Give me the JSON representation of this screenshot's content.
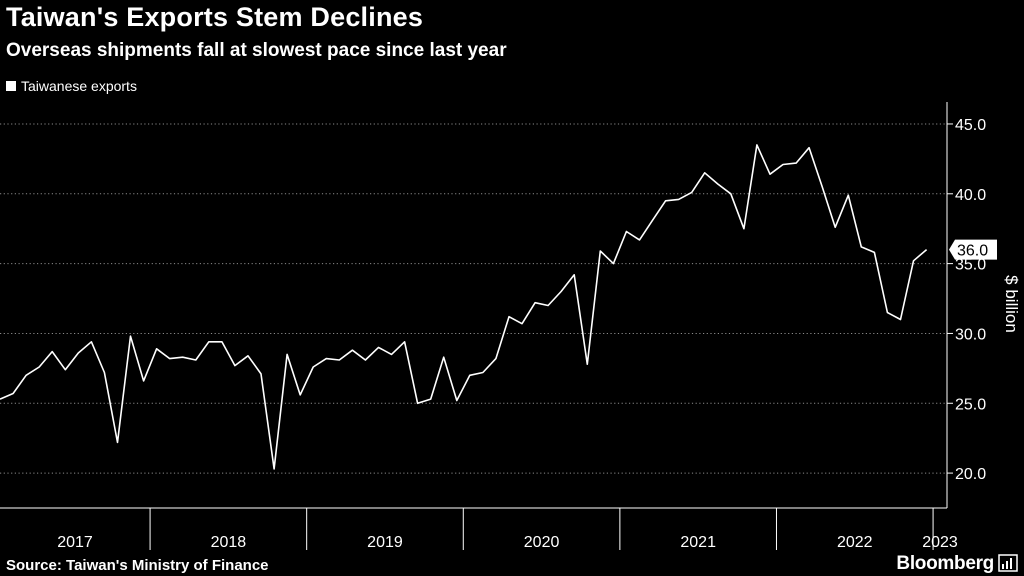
{
  "header": {
    "title": "Taiwan's Exports Stem Declines",
    "subtitle": "Overseas shipments fall at slowest pace since last year"
  },
  "footer": {
    "source": "Source: Taiwan's Ministry of Finance",
    "brand": "Bloomberg",
    "brand_icon": "bloomberg-chart-icon"
  },
  "chart_data": {
    "type": "line",
    "title": "Taiwan's Exports Stem Declines",
    "subtitle": "Overseas shipments fall at slowest pace since last year",
    "xlabel": "",
    "ylabel": "$ billion",
    "ylim": [
      17.5,
      46
    ],
    "yticks": [
      "20.0",
      "25.0",
      "30.0",
      "35.0",
      "40.0",
      "45.0"
    ],
    "ytick_values": [
      20,
      25,
      30,
      35,
      40,
      45
    ],
    "grid": "horizontal dotted",
    "legend": "top-left",
    "last_label": "36.0",
    "x_categories": [
      "2017",
      "2018",
      "2019",
      "2020",
      "2021",
      "2022",
      "2023"
    ],
    "series": [
      {
        "name": "Taiwanese exports",
        "color": "#ffffff",
        "start": "2017-01",
        "values": [
          25.3,
          25.7,
          27.0,
          27.6,
          28.7,
          27.4,
          28.6,
          29.4,
          27.2,
          22.2,
          29.8,
          26.6,
          28.9,
          28.2,
          28.3,
          28.1,
          29.4,
          29.4,
          27.7,
          28.4,
          27.1,
          20.3,
          28.5,
          25.6,
          27.6,
          28.2,
          28.1,
          28.8,
          28.1,
          29.0,
          28.5,
          29.4,
          25.0,
          25.3,
          28.3,
          25.2,
          27.0,
          27.2,
          28.2,
          31.2,
          30.7,
          32.2,
          32.0,
          33.0,
          34.2,
          27.8,
          35.9,
          35.0,
          37.3,
          36.7,
          38.1,
          39.5,
          39.6,
          40.1,
          41.5,
          40.7,
          40.0,
          37.5,
          43.5,
          41.4,
          42.1,
          42.2,
          43.3,
          40.5,
          37.6,
          39.9,
          36.2,
          35.8,
          31.5,
          31.0,
          35.2,
          36.0
        ]
      }
    ]
  }
}
